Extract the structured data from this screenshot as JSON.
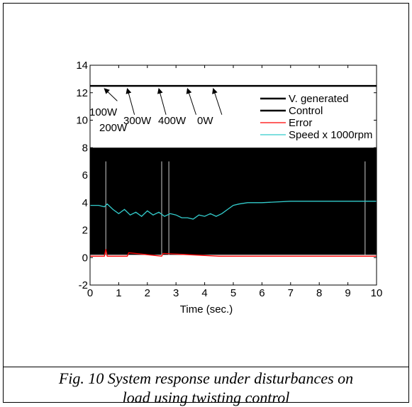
{
  "chart_data": {
    "type": "line",
    "xlabel": "Time (sec.)",
    "ylabel": "",
    "xlim": [
      0,
      10
    ],
    "ylim": [
      -2,
      14
    ],
    "xticks": [
      "0",
      "1",
      "2",
      "3",
      "4",
      "5",
      "6",
      "7",
      "8",
      "9",
      "10"
    ],
    "yticks": [
      "-2",
      "0",
      "2",
      "4",
      "6",
      "8",
      "10",
      "12",
      "14"
    ],
    "grid": false,
    "legend_position": "top-right",
    "series": [
      {
        "name": "V. generated",
        "color": "#000000",
        "x": [
          0,
          10
        ],
        "y": [
          12.5,
          12.5
        ]
      },
      {
        "name": "Control",
        "color": "#000000",
        "x": [
          0,
          10
        ],
        "y": [
          8,
          8
        ]
      },
      {
        "name": "Error",
        "color": "#ff0000",
        "x": [
          0,
          0.5,
          0.55,
          0.6,
          1.3,
          1.35,
          2.5,
          2.55,
          4.5,
          10
        ],
        "y": [
          0.1,
          0.1,
          0.6,
          0.1,
          0.1,
          0.35,
          0.1,
          0.3,
          0.1,
          0.1
        ]
      },
      {
        "name": "Speed x 1000rpm",
        "color": "#33cccc",
        "x": [
          0,
          0.3,
          0.5,
          0.6,
          0.8,
          1.0,
          1.2,
          1.4,
          1.6,
          1.8,
          2.0,
          2.2,
          2.4,
          2.6,
          2.8,
          3.0,
          3.2,
          3.4,
          3.6,
          3.8,
          4.0,
          4.2,
          4.4,
          4.6,
          4.8,
          5.0,
          5.2,
          5.5,
          6.0,
          7.0,
          8.0,
          9.0,
          10.0
        ],
        "y": [
          3.8,
          3.8,
          3.7,
          3.9,
          3.5,
          3.2,
          3.5,
          3.1,
          3.3,
          3.0,
          3.4,
          3.1,
          3.3,
          3.0,
          3.2,
          3.1,
          2.9,
          2.9,
          2.8,
          3.1,
          3.0,
          3.2,
          3.0,
          3.2,
          3.5,
          3.8,
          3.9,
          4.0,
          4.0,
          4.1,
          4.1,
          4.1,
          4.1
        ]
      }
    ],
    "annotations": [
      "100W",
      "200W",
      "300W",
      "400W",
      "0W"
    ]
  },
  "caption": {
    "line1": "Fig. 10 System response under disturbances on",
    "line2": "load using twisting control"
  }
}
